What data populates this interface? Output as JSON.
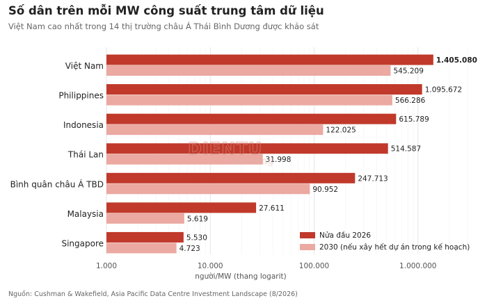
{
  "title": "Số dân trên mỗi MW công suất trung tâm dữ liệu",
  "subtitle": "Việt Nam cao nhất trong 14 thị trường châu Á Thái Bình Dương được khảo sát",
  "source": "Nguồn: Cushman & Wakefield, Asia Pacific Data Centre Investment Landscape (8/2026)",
  "watermark": {
    "line1": "DIENTU",
    "line2": "tieudung"
  },
  "colors": {
    "series1": "#c0392b",
    "series2": "#eba9a1",
    "grid": "#e6e6e6",
    "axis_text": "#555555",
    "label_text": "#222222"
  },
  "chart_data": {
    "type": "bar",
    "orientation": "horizontal",
    "x_scale": "log",
    "xlim": [
      1000,
      3000000
    ],
    "xlabel": "người/MW (thang logarit)",
    "x_ticks": [
      1000,
      10000,
      100000,
      1000000
    ],
    "x_tick_labels": [
      "1.000",
      "10.000",
      "100.000",
      "1.000.000"
    ],
    "grid": true,
    "legend_position": "bottom-right",
    "categories": [
      "Việt Nam",
      "Philippines",
      "Indonesia",
      "Thái Lan",
      "Bình quân châu Á TBD",
      "Malaysia",
      "Singapore"
    ],
    "series": [
      {
        "name": "Nửa đầu 2026",
        "values": [
          1405080,
          1095672,
          615789,
          514587,
          247713,
          27611,
          5530
        ],
        "labels": [
          "1.405.080",
          "1.095.672",
          "615.789",
          "514.587",
          "247.713",
          "27.611",
          "5.530"
        ]
      },
      {
        "name": "2030 (nếu xây hết dự án trong kế hoạch)",
        "values": [
          545209,
          566286,
          122025,
          31998,
          90952,
          5619,
          4723
        ],
        "labels": [
          "545.209",
          "566.286",
          "122.025",
          "31.998",
          "90.952",
          "5.619",
          "4.723"
        ]
      }
    ]
  }
}
